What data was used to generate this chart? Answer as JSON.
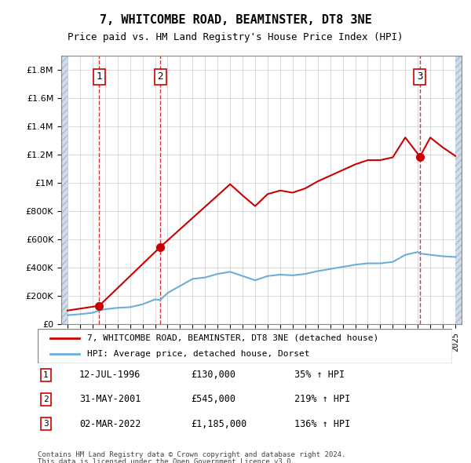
{
  "title": "7, WHITCOMBE ROAD, BEAMINSTER, DT8 3NE",
  "subtitle": "Price paid vs. HM Land Registry's House Price Index (HPI)",
  "hpi_label": "HPI: Average price, detached house, Dorset",
  "property_label": "7, WHITCOMBE ROAD, BEAMINSTER, DT8 3NE (detached house)",
  "footer1": "Contains HM Land Registry data © Crown copyright and database right 2024.",
  "footer2": "This data is licensed under the Open Government Licence v3.0.",
  "sales": [
    {
      "date": 1996.54,
      "price": 130000,
      "label": "1"
    },
    {
      "date": 2001.41,
      "price": 545000,
      "label": "2"
    },
    {
      "date": 2022.17,
      "price": 1185000,
      "label": "3"
    }
  ],
  "sale_annotations": [
    {
      "label": "1",
      "date": "12-JUL-1996",
      "price": "£130,000",
      "pct": "35% ↑ HPI"
    },
    {
      "label": "2",
      "date": "31-MAY-2001",
      "price": "£545,000",
      "pct": "219% ↑ HPI"
    },
    {
      "label": "3",
      "date": "02-MAR-2022",
      "price": "£1,185,000",
      "pct": "136% ↑ HPI"
    }
  ],
  "hpi_line_color": "#6baed6",
  "property_line_color": "#cc0000",
  "dashed_line_color": "#cc0000",
  "ylim": [
    0,
    1900000
  ],
  "xlim": [
    1993.5,
    2025.5
  ],
  "hatch_color": "#c8d8e8",
  "grid_color": "#cccccc",
  "sale_vline_dates": [
    1996.54,
    2001.41,
    2022.17
  ],
  "hpi_x": [
    1994,
    1995,
    1996,
    1996.54,
    1997,
    1998,
    1999,
    2000,
    2001,
    2001.41,
    2002,
    2003,
    2004,
    2005,
    2006,
    2007,
    2008,
    2009,
    2010,
    2011,
    2012,
    2013,
    2014,
    2015,
    2016,
    2017,
    2018,
    2019,
    2020,
    2021,
    2022,
    2022.17,
    2023,
    2024,
    2025
  ],
  "hpi_y": [
    63000,
    70000,
    80000,
    96296,
    105000,
    115000,
    120000,
    140000,
    175000,
    170988,
    220000,
    270000,
    320000,
    330000,
    355000,
    370000,
    340000,
    310000,
    340000,
    350000,
    345000,
    355000,
    375000,
    390000,
    405000,
    420000,
    430000,
    430000,
    440000,
    490000,
    510000,
    499417,
    490000,
    480000,
    475000
  ],
  "property_x": [
    1994,
    1996.54,
    1996.54,
    2001.41,
    2001.41,
    2007,
    2008,
    2009,
    2010,
    2011,
    2012,
    2013,
    2014,
    2015,
    2016,
    2017,
    2018,
    2019,
    2020,
    2021,
    2022.17,
    2022.17,
    2023,
    2024,
    2025
  ],
  "property_y": [
    96000,
    130000,
    130000,
    545000,
    545000,
    990000,
    910000,
    835000,
    920000,
    945000,
    930000,
    960000,
    1010000,
    1050000,
    1090000,
    1130000,
    1160000,
    1160000,
    1180000,
    1320000,
    1185000,
    1185000,
    1320000,
    1250000,
    1190000
  ]
}
